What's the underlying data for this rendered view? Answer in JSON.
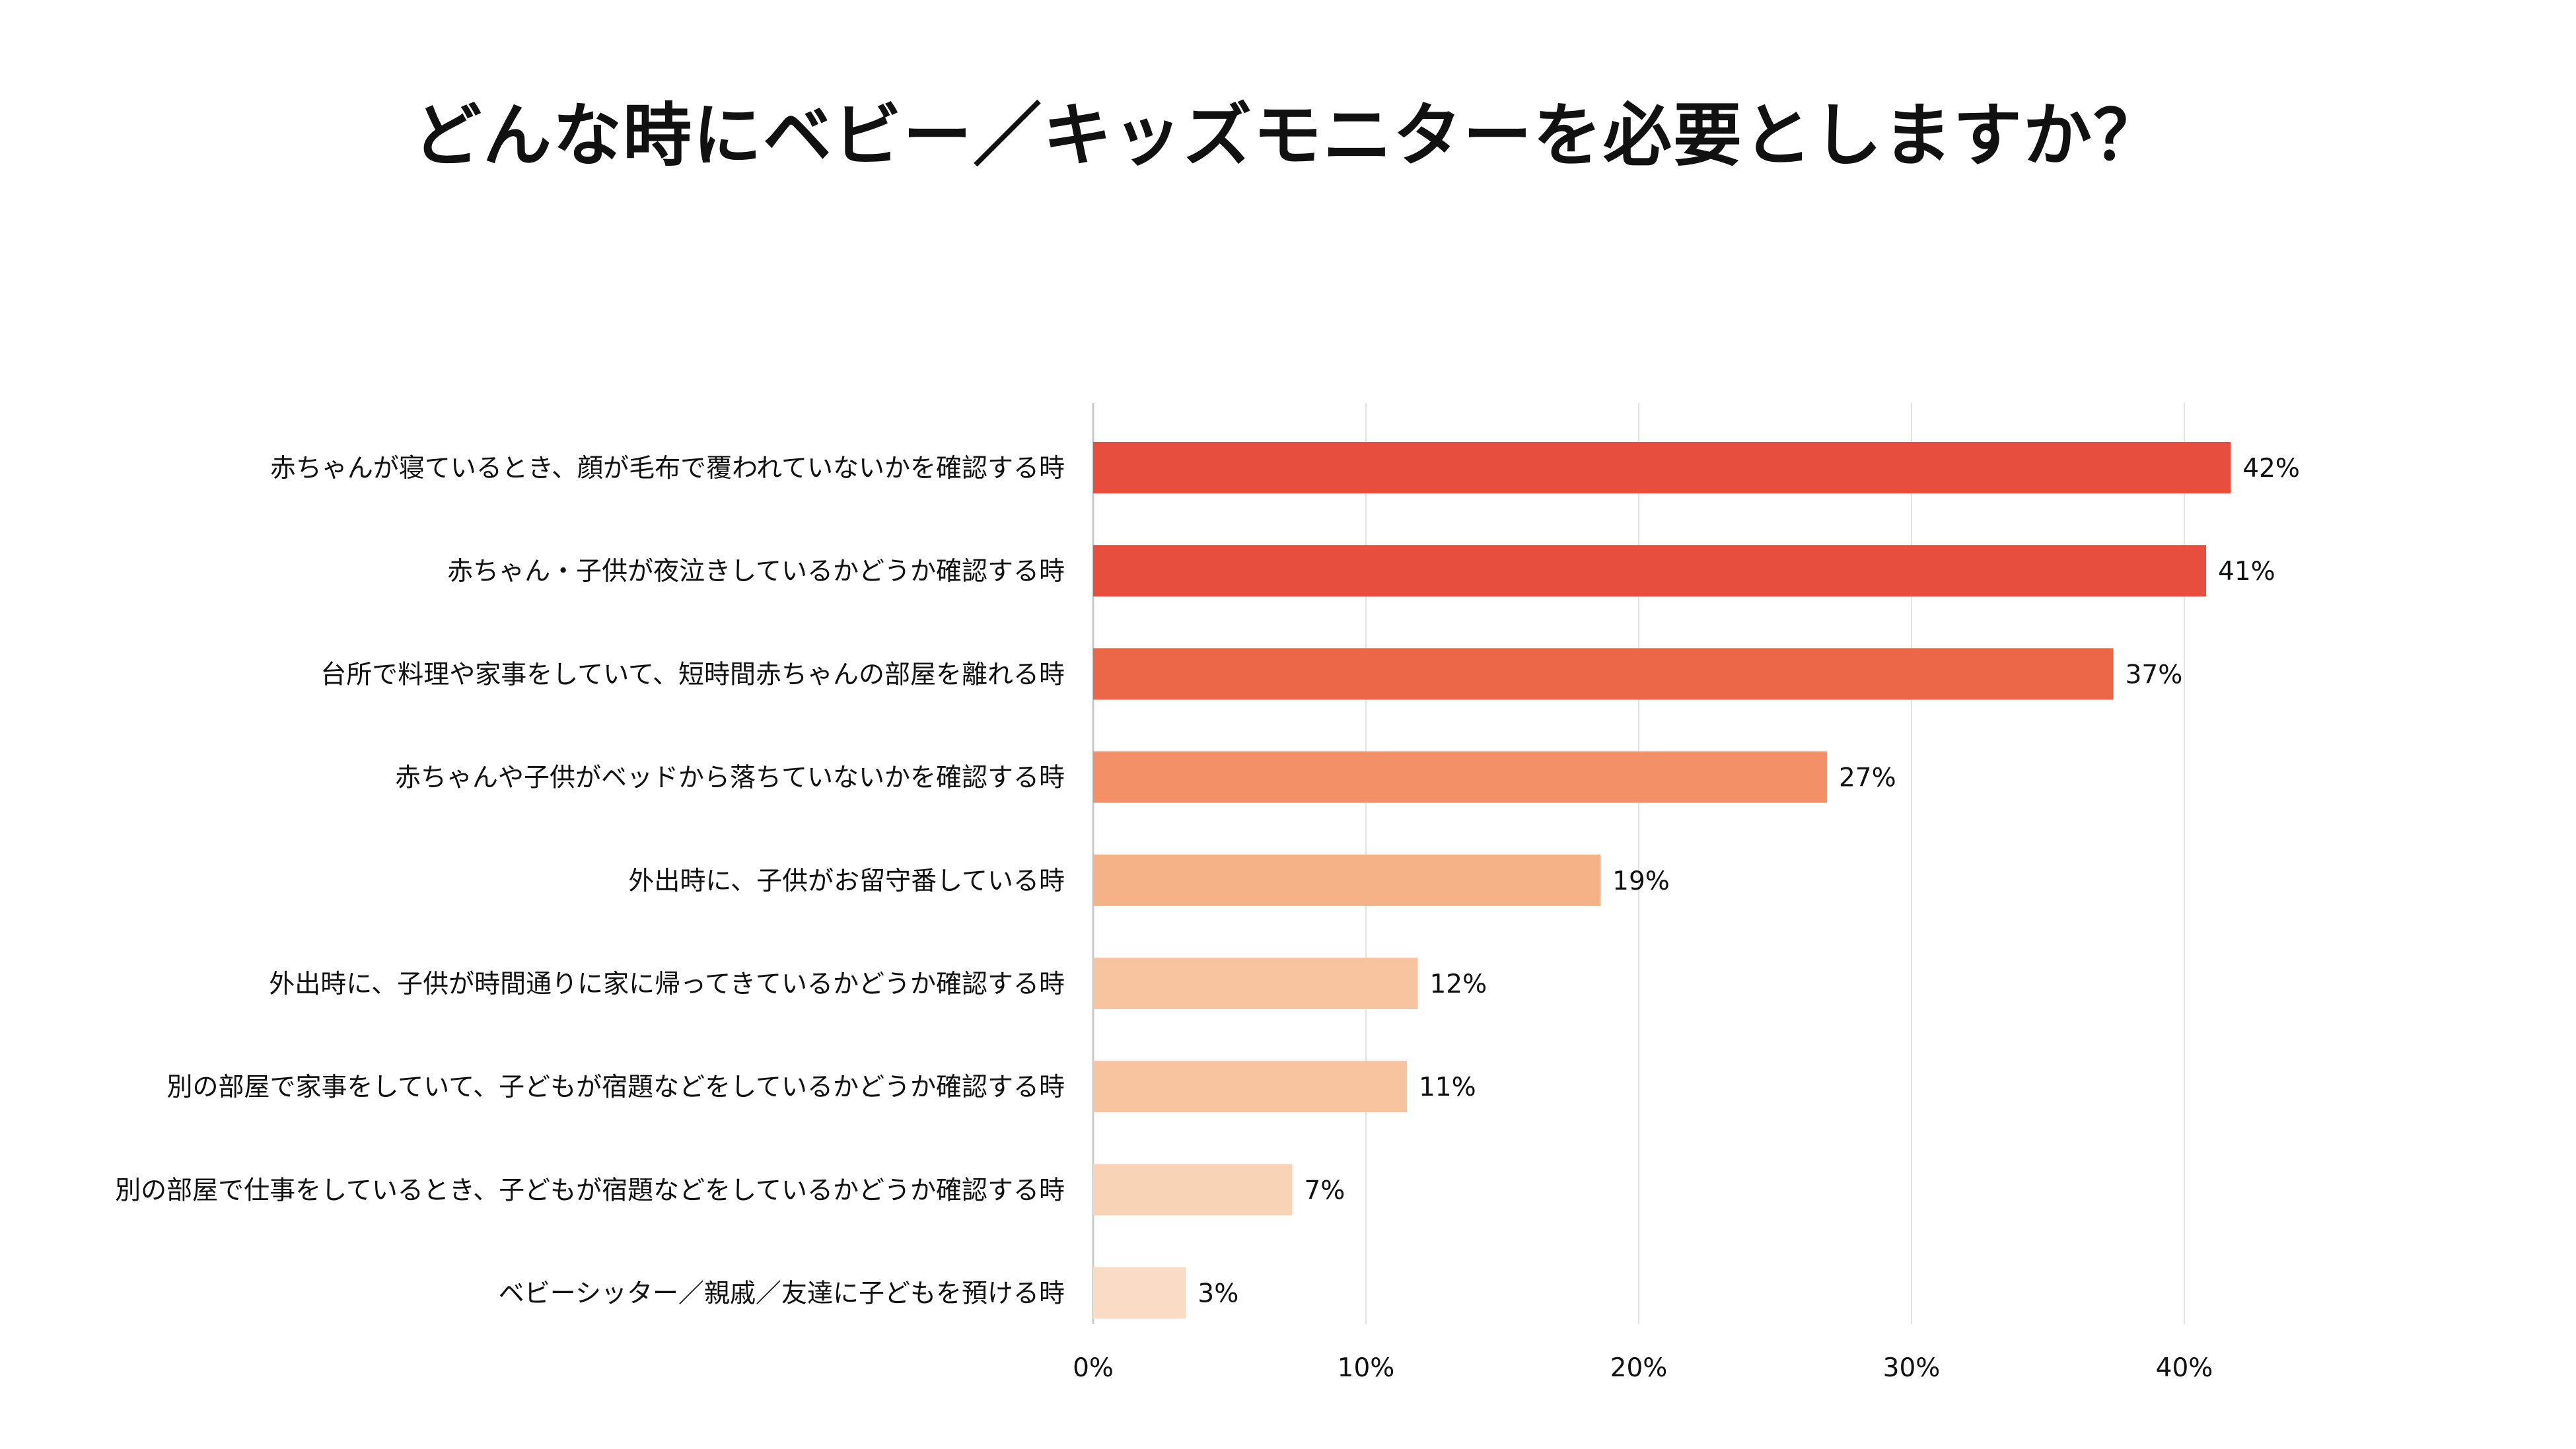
{
  "chart_data": {
    "type": "bar",
    "orientation": "horizontal",
    "title": "どんな時にベビー／キッズモニターを必要としますか？",
    "xlabel": "",
    "ylabel": "",
    "xlim": [
      0,
      40
    ],
    "ticks": [
      0,
      10,
      20,
      30,
      40
    ],
    "tick_labels": [
      "0%",
      "10%",
      "20%",
      "30%",
      "40%"
    ],
    "grid": true,
    "legend": "none",
    "categories": [
      "赤ちゃんが寝ているとき、顔が毛布で覆われていないかを確認する時",
      "赤ちゃん・子供が夜泣きしているかどうか確認する時",
      "台所で料理や家事をしていて、短時間赤ちゃんの部屋を離れる時",
      "赤ちゃんや子供がベッドから落ちていないかを確認する時",
      "外出時に、子供がお留守番している時",
      "外出時に、子供が時間通りに家に帰ってきているかどうか確認する時",
      "別の部屋で家事をしていて、子どもが宿題などをしているかどうか確認する時",
      "別の部屋で仕事をしているとき、子どもが宿題などをしているかどうか確認する時",
      "ベビーシッター／親戚／友達に子どもを預ける時"
    ],
    "values": [
      41.7,
      40.8,
      37.4,
      26.9,
      18.6,
      11.9,
      11.5,
      7.3,
      3.4
    ],
    "value_labels": [
      "42%",
      "41%",
      "37%",
      "27%",
      "19%",
      "12%",
      "11%",
      "7%",
      "3%"
    ],
    "colors": [
      "#e84e3e",
      "#e84e3e",
      "#ec6648",
      "#f39067",
      "#f5b287",
      "#f7c49f",
      "#f7c49f",
      "#f9d3b6",
      "#fadbc5"
    ],
    "gridline_color": "#e2e2e2",
    "axis_color": "#c8c8c8"
  }
}
